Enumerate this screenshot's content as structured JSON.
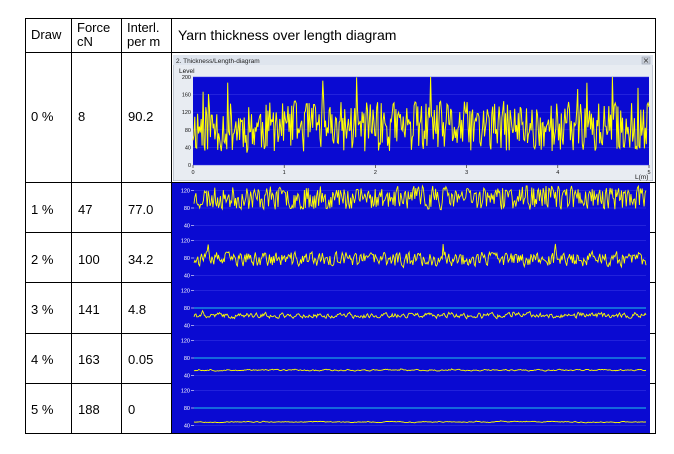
{
  "headers": {
    "draw": "Draw",
    "force": "Force cN",
    "force_l1": "Force",
    "force_l2": "cN",
    "interl_l1": "Interl.",
    "interl_l2": "per m",
    "diagram": "Yarn thickness over length diagram"
  },
  "rows": [
    {
      "draw": "0 %",
      "force": "8",
      "interl": "90.2"
    },
    {
      "draw": "1 %",
      "force": "47",
      "interl": "77.0"
    },
    {
      "draw": "2 %",
      "force": "100",
      "interl": "34.2"
    },
    {
      "draw": "3 %",
      "force": "141",
      "interl": "4.8"
    },
    {
      "draw": "4 %",
      "force": "163",
      "interl": "0.05"
    },
    {
      "draw": "5 %",
      "force": "188",
      "interl": "0"
    }
  ],
  "window": {
    "title": "2. Thickness/Length-diagram",
    "y_axis_label": "Level",
    "x_axis_label": "L(m)"
  },
  "colors": {
    "plot_bg": "#0a0ad2",
    "trace": "#ffff00",
    "grid": "#3a3ae6",
    "ref_line": "#20c8e6"
  },
  "chart_data": [
    {
      "type": "line",
      "row": "0 %",
      "yticks": [
        "200",
        "160",
        "120",
        "80",
        "40",
        "0"
      ],
      "ylim": [
        0,
        200
      ],
      "xticks": [
        "0",
        "1",
        "2",
        "3",
        "4",
        "5"
      ],
      "xlim": [
        0,
        5
      ],
      "baseline": 80,
      "amplitude": 60,
      "smooth": 0.05,
      "seed": 11
    },
    {
      "type": "line",
      "row": "1 %",
      "yticks": [
        "120",
        "80",
        "40"
      ],
      "ylim": [
        30,
        130
      ],
      "baseline": 100,
      "amplitude": 28,
      "smooth": 0.1,
      "seed": 23
    },
    {
      "type": "line",
      "row": "2 %",
      "yticks": [
        "120",
        "80",
        "40"
      ],
      "ylim": [
        30,
        130
      ],
      "baseline": 75,
      "amplitude": 20,
      "smooth": 0.25,
      "seed": 37
    },
    {
      "type": "line",
      "row": "3 %",
      "yticks": [
        "120",
        "80",
        "40"
      ],
      "ylim": [
        30,
        130
      ],
      "baseline": 62,
      "amplitude": 10,
      "smooth": 0.5,
      "seed": 41,
      "ref": 80
    },
    {
      "type": "line",
      "row": "4 %",
      "yticks": [
        "120",
        "80",
        "40"
      ],
      "ylim": [
        30,
        130
      ],
      "baseline": 52,
      "amplitude": 4,
      "smooth": 0.7,
      "seed": 53,
      "ref": 80
    },
    {
      "type": "line",
      "row": "5 %",
      "yticks": [
        "120",
        "80",
        "40"
      ],
      "ylim": [
        30,
        130
      ],
      "baseline": 48,
      "amplitude": 3,
      "smooth": 0.75,
      "seed": 67,
      "ref": 80
    }
  ]
}
